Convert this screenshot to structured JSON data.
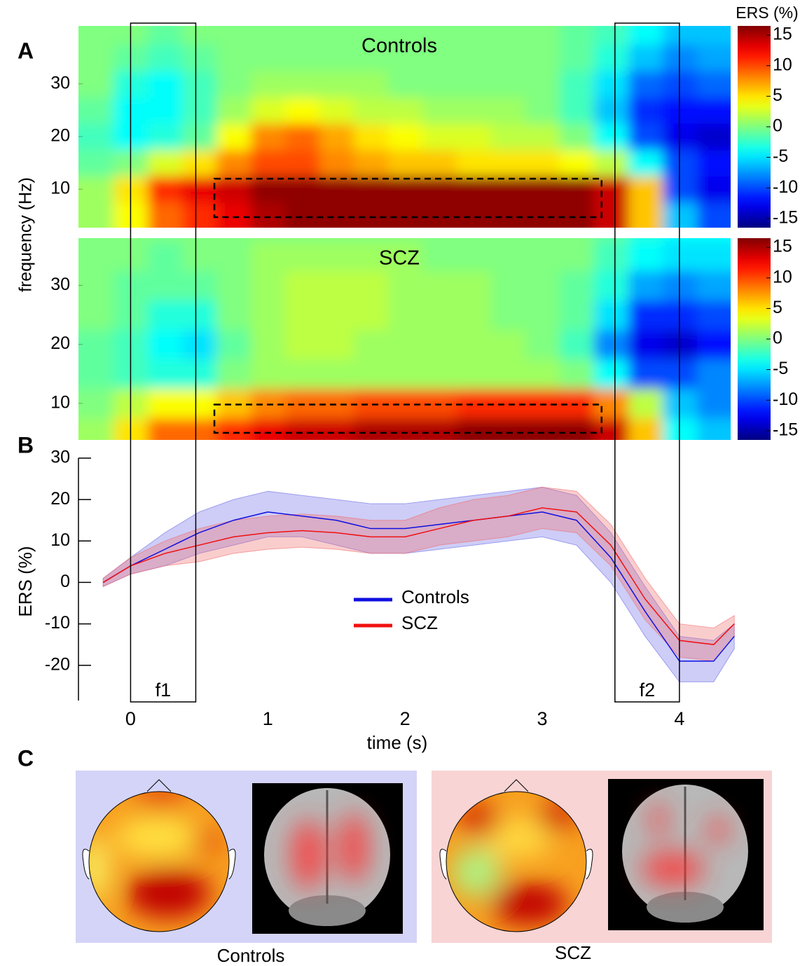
{
  "figure": {
    "panel_labels": [
      "A",
      "B",
      "C"
    ],
    "panel_c_captions": [
      "Controls",
      "SCZ"
    ]
  },
  "chart_data": [
    {
      "type": "heatmap",
      "title": "Controls",
      "ylabel": "frequency (Hz)",
      "colorbar_label": "ERS (%)",
      "x": [
        -0.25,
        0,
        0.25,
        0.5,
        0.75,
        1,
        1.25,
        1.5,
        1.75,
        2,
        2.25,
        2.5,
        2.75,
        3,
        3.25,
        3.5,
        3.75,
        4,
        4.25
      ],
      "y": [
        5,
        10,
        15,
        20,
        25,
        30,
        35,
        40
      ],
      "values": [
        [
          1,
          4,
          9,
          11,
          13,
          15,
          16,
          16,
          16,
          16,
          16,
          16,
          16,
          16,
          16,
          14,
          6,
          -6,
          -10
        ],
        [
          1,
          5,
          11,
          13,
          14,
          16,
          16,
          16,
          16,
          16,
          16,
          16,
          16,
          16,
          16,
          14,
          6,
          -10,
          -13
        ],
        [
          -1,
          0,
          3,
          5,
          8,
          10,
          10,
          8,
          7,
          6,
          6,
          5,
          5,
          5,
          4,
          2,
          -4,
          -10,
          -12
        ],
        [
          -2,
          -4,
          -3,
          -1,
          4,
          8,
          9,
          7,
          5,
          4,
          3,
          3,
          2,
          2,
          0,
          -4,
          -10,
          -13,
          -14
        ],
        [
          -1,
          -4,
          -4,
          -2,
          1,
          3,
          4,
          3,
          2,
          2,
          1,
          1,
          1,
          0,
          -2,
          -6,
          -11,
          -12,
          -12
        ],
        [
          0,
          -3,
          -4,
          -2,
          0,
          1,
          1,
          1,
          1,
          0,
          0,
          0,
          0,
          0,
          -2,
          -5,
          -9,
          -10,
          -9
        ],
        [
          0,
          -1,
          -2,
          -1,
          0,
          0,
          0,
          0,
          0,
          0,
          0,
          0,
          0,
          0,
          -1,
          -3,
          -6,
          -8,
          -7
        ],
        [
          0,
          0,
          -1,
          0,
          0,
          0,
          0,
          0,
          0,
          0,
          0,
          0,
          0,
          0,
          -1,
          -2,
          -4,
          -6,
          -6
        ]
      ],
      "xlim": [
        -0.38,
        4.37
      ],
      "ylim": [
        2.7,
        41
      ],
      "yticks": [
        30,
        20,
        10
      ],
      "clim": [
        -16.5,
        16.5
      ],
      "cticks": [
        15,
        10,
        5,
        0,
        -5,
        -10,
        -15
      ],
      "roi": {
        "x": [
          0.61,
          3.43
        ],
        "y": [
          4.7,
          12
        ]
      }
    },
    {
      "type": "heatmap",
      "title": "SCZ",
      "x": [
        -0.25,
        0,
        0.25,
        0.5,
        0.75,
        1,
        1.25,
        1.5,
        1.75,
        2,
        2.25,
        2.5,
        2.75,
        3,
        3.25,
        3.5,
        3.75,
        4,
        4.25
      ],
      "y": [
        5,
        10,
        15,
        20,
        25,
        30,
        35,
        40
      ],
      "values": [
        [
          1,
          5,
          9,
          9,
          11,
          13,
          14,
          14,
          15,
          15,
          15,
          16,
          16,
          16,
          16,
          14,
          6,
          -4,
          -6
        ],
        [
          0,
          2,
          4,
          4,
          6,
          8,
          9,
          9,
          10,
          10,
          10,
          11,
          11,
          11,
          11,
          8,
          2,
          -6,
          -8
        ],
        [
          -1,
          -2,
          -3,
          -3,
          0,
          1,
          1,
          1,
          1,
          1,
          1,
          1,
          1,
          1,
          0,
          -4,
          -10,
          -10,
          -8
        ],
        [
          -1,
          -2,
          -4,
          -5,
          -1,
          1,
          2,
          2,
          1,
          1,
          1,
          1,
          1,
          0,
          -2,
          -8,
          -13,
          -14,
          -12
        ],
        [
          0,
          -1,
          -3,
          -3,
          0,
          1,
          2,
          2,
          2,
          1,
          1,
          1,
          0,
          0,
          -1,
          -5,
          -11,
          -11,
          -10
        ],
        [
          0,
          -1,
          -1,
          -1,
          0,
          1,
          2,
          2,
          2,
          1,
          1,
          1,
          0,
          0,
          -1,
          -3,
          -7,
          -8,
          -7
        ],
        [
          0,
          0,
          -1,
          0,
          0,
          1,
          1,
          1,
          1,
          1,
          0,
          0,
          0,
          0,
          0,
          -2,
          -4,
          -5,
          -5
        ],
        [
          0,
          0,
          0,
          0,
          0,
          0,
          0,
          0,
          0,
          0,
          0,
          0,
          0,
          0,
          0,
          -1,
          -3,
          -4,
          -4
        ]
      ],
      "xlim": [
        -0.38,
        4.37
      ],
      "ylim": [
        3.8,
        38
      ],
      "yticks": [
        30,
        20,
        10
      ],
      "clim": [
        -16.5,
        16.5
      ],
      "cticks": [
        15,
        10,
        5,
        0,
        -5,
        -10,
        -15
      ],
      "roi": {
        "x": [
          0.61,
          3.43
        ],
        "y": [
          5,
          9.8
        ]
      }
    },
    {
      "type": "line",
      "xlabel": "time (s)",
      "ylabel": "ERS (%)",
      "x": [
        -0.2,
        0,
        0.25,
        0.5,
        0.75,
        1,
        1.25,
        1.5,
        1.75,
        2,
        2.25,
        2.5,
        2.75,
        3,
        3.25,
        3.5,
        3.75,
        4,
        4.25,
        4.4
      ],
      "series": [
        {
          "name": "Controls",
          "color": "#1010e0",
          "band_color": "#7070e8",
          "values": [
            0,
            4,
            8,
            12,
            15,
            17,
            16,
            15,
            13,
            13,
            14,
            15,
            16,
            17,
            15,
            6,
            -7,
            -19,
            -19,
            -13
          ],
          "lower": [
            -1,
            2,
            4,
            7,
            9,
            11,
            11,
            9,
            7,
            7,
            8,
            9,
            10,
            11,
            9,
            0,
            -13,
            -24,
            -24,
            -16
          ],
          "upper": [
            1,
            6,
            12,
            17,
            20,
            22,
            21,
            20,
            19,
            19,
            20,
            21,
            22,
            23,
            21,
            12,
            -1,
            -13,
            -14,
            -10
          ]
        },
        {
          "name": "SCZ",
          "color": "#f01010",
          "band_color": "#f07070",
          "values": [
            0,
            4,
            7,
            9,
            11,
            12,
            12.5,
            12,
            11,
            11,
            13,
            15,
            16,
            18,
            17,
            9,
            -4,
            -14,
            -15,
            -10
          ],
          "lower": [
            -1,
            2,
            4,
            5,
            7,
            8,
            8.5,
            8,
            7,
            7,
            9,
            10,
            11,
            13,
            12,
            4,
            -9,
            -18,
            -19,
            -13
          ],
          "upper": [
            1,
            6,
            10,
            13,
            15,
            16,
            16.5,
            16,
            15,
            15,
            18,
            20,
            21,
            23,
            22,
            14,
            1,
            -10,
            -11,
            -8
          ]
        }
      ],
      "xlim": [
        -0.38,
        4.45
      ],
      "ylim": [
        -28.5,
        30
      ],
      "xticks": [
        0,
        1,
        2,
        3,
        4
      ],
      "yticks": [
        30,
        20,
        10,
        0,
        -10,
        -20
      ],
      "legend": "center",
      "windows": [
        {
          "label": "f1",
          "range": [
            0,
            0.475
          ]
        },
        {
          "label": "f2",
          "range": [
            3.53,
            4.0
          ]
        }
      ]
    }
  ]
}
